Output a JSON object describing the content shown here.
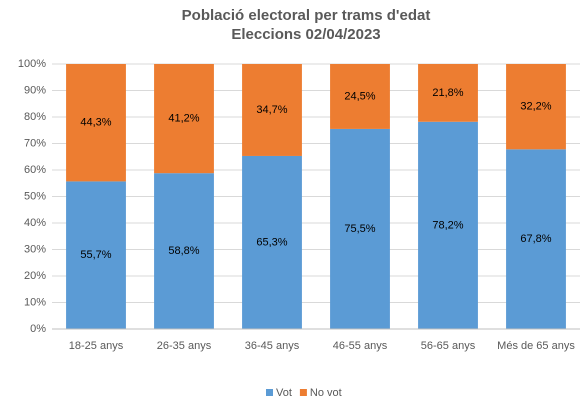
{
  "chart_data": {
    "type": "stacked_bar",
    "title": "Població electoral per trams d'edat",
    "subtitle": "Eleccions 02/04/2023",
    "categories": [
      "18-25 anys",
      "26-35 anys",
      "36-45 anys",
      "46-55 anys",
      "56-65 anys",
      "Més de 65 anys"
    ],
    "series": [
      {
        "name": "Vot",
        "color": "#5b9bd5",
        "values": [
          55.7,
          58.8,
          65.3,
          75.5,
          78.2,
          67.8
        ],
        "value_labels": [
          "55,7%",
          "58,8%",
          "65,3%",
          "75,5%",
          "78,2%",
          "67,8%"
        ]
      },
      {
        "name": "No vot",
        "color": "#ed7d31",
        "values": [
          44.3,
          41.2,
          34.7,
          24.5,
          21.8,
          32.2
        ],
        "value_labels": [
          "44,3%",
          "41,2%",
          "34,7%",
          "24,5%",
          "21,8%",
          "32,2%"
        ]
      }
    ],
    "ylim": [
      0,
      100
    ],
    "yticks": [
      {
        "value": 0,
        "label": "0%"
      },
      {
        "value": 10,
        "label": "10%"
      },
      {
        "value": 20,
        "label": "20%"
      },
      {
        "value": 30,
        "label": "30%"
      },
      {
        "value": 40,
        "label": "40%"
      },
      {
        "value": 50,
        "label": "50%"
      },
      {
        "value": 60,
        "label": "60%"
      },
      {
        "value": 70,
        "label": "70%"
      },
      {
        "value": 80,
        "label": "80%"
      },
      {
        "value": 90,
        "label": "90%"
      },
      {
        "value": 100,
        "label": "100%"
      }
    ],
    "grid": true,
    "legend": "bottom"
  }
}
